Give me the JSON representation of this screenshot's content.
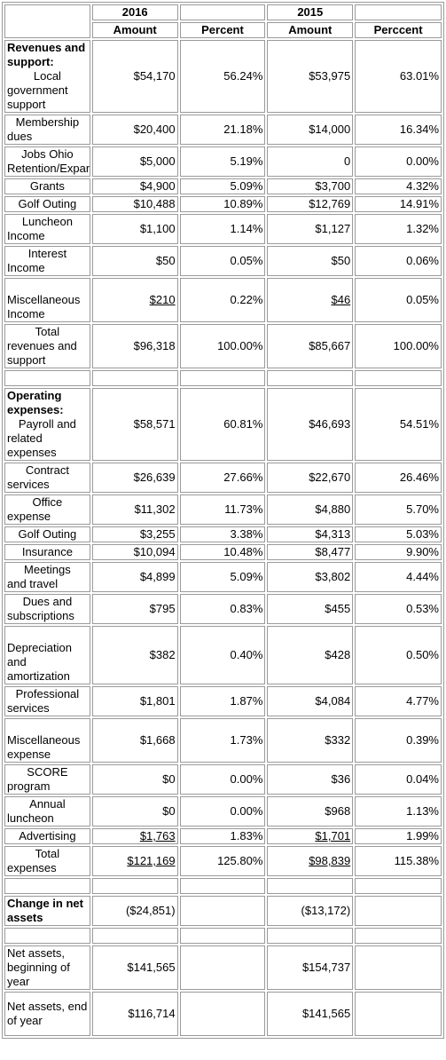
{
  "header": {
    "year_2016": "2016",
    "year_2015": "2015",
    "amount_2016": "Amount",
    "percent_2016": "Percent",
    "amount_2015": "Amount",
    "percent_2015": "Perccent"
  },
  "sections": [
    {
      "title": "Revenues and support:",
      "rows": [
        {
          "first": "Local",
          "rest": "government support",
          "a16": "$54,170",
          "p16": "56.24%",
          "a15": "$53,975",
          "p15": "63.01%"
        },
        {
          "first": "Membership",
          "rest": "dues",
          "a16": "$20,400",
          "p16": "21.18%",
          "a15": "$14,000",
          "p15": "16.34%"
        },
        {
          "first": "Jobs Ohio",
          "rest": "Retention/Expansion",
          "a16": "$5,000",
          "p16": "5.19%",
          "a15": "0",
          "p15": "0.00%"
        },
        {
          "first": "Grants",
          "rest": "",
          "a16": "$4,900",
          "p16": "5.09%",
          "a15": "$3,700",
          "p15": "4.32%"
        },
        {
          "first": "Golf Outing",
          "rest": "",
          "a16": "$10,488",
          "p16": "10.89%",
          "a15": "$12,769",
          "p15": "14.91%"
        },
        {
          "first": "Luncheon",
          "rest": "Income",
          "a16": "$1,100",
          "p16": "1.14%",
          "a15": "$1,127",
          "p15": "1.32%"
        },
        {
          "first": "Interest",
          "rest": "Income",
          "a16": "$50",
          "p16": "0.05%",
          "a15": "$50",
          "p15": "0.06%"
        },
        {
          "first": "",
          "rest": "Miscellaneous Income",
          "a16": "$210",
          "p16": "0.22%",
          "a15": "$46",
          "p15": "0.05%",
          "u": true,
          "blank_top": true
        },
        {
          "first": "Total",
          "rest": "revenues and support",
          "a16": "$96,318",
          "p16": "100.00%",
          "a15": "$85,667",
          "p15": "100.00%"
        }
      ]
    },
    {
      "title": "Operating expenses:",
      "rows": [
        {
          "first": "Payroll and",
          "rest": "related expenses",
          "a16": "$58,571",
          "p16": "60.81%",
          "a15": "$46,693",
          "p15": "54.51%"
        },
        {
          "first": "Contract",
          "rest": "services",
          "a16": "$26,639",
          "p16": "27.66%",
          "a15": "$22,670",
          "p15": "26.46%"
        },
        {
          "first": "Office",
          "rest": "expense",
          "a16": "$11,302",
          "p16": "11.73%",
          "a15": "$4,880",
          "p15": "5.70%"
        },
        {
          "first": "Golf Outing",
          "rest": "",
          "a16": "$3,255",
          "p16": "3.38%",
          "a15": "$4,313",
          "p15": "5.03%"
        },
        {
          "first": "Insurance",
          "rest": "",
          "a16": "$10,094",
          "p16": "10.48%",
          "a15": "$8,477",
          "p15": "9.90%"
        },
        {
          "first": "Meetings",
          "rest": "and travel",
          "a16": "$4,899",
          "p16": "5.09%",
          "a15": "$3,802",
          "p15": "4.44%"
        },
        {
          "first": "Dues and",
          "rest": "subscriptions",
          "a16": "$795",
          "p16": "0.83%",
          "a15": "$455",
          "p15": "0.53%"
        },
        {
          "first": "",
          "rest": "Depreciation and amortization",
          "a16": "$382",
          "p16": "0.40%",
          "a15": "$428",
          "p15": "0.50%",
          "blank_top": true
        },
        {
          "first": "Professional",
          "rest": "services",
          "a16": "$1,801",
          "p16": "1.87%",
          "a15": "$4,084",
          "p15": "4.77%"
        },
        {
          "first": "",
          "rest": "Miscellaneous expense",
          "a16": "$1,668",
          "p16": "1.73%",
          "a15": "$332",
          "p15": "0.39%",
          "blank_top": true
        },
        {
          "first": "SCORE",
          "rest": "program",
          "a16": "$0",
          "p16": "0.00%",
          "a15": "$36",
          "p15": "0.04%"
        },
        {
          "first": "Annual",
          "rest": "luncheon",
          "a16": "$0",
          "p16": "0.00%",
          "a15": "$968",
          "p15": "1.13%"
        },
        {
          "first": "Advertising",
          "rest": "",
          "a16": "$1,763",
          "p16": "1.83%",
          "a15": "$1,701",
          "p15": "1.99%",
          "u": true
        },
        {
          "first": "Total",
          "rest": "expenses",
          "a16": "$121,169",
          "p16": "125.80%",
          "a15": "$98,839",
          "p15": "115.38%",
          "u": true
        }
      ]
    }
  ],
  "summary": {
    "change": {
      "label": "Change in net assets",
      "a16": "($24,851)",
      "a15": "($13,172)"
    },
    "beginning": {
      "label": "Net assets, beginning of year",
      "a16": "$141,565",
      "a15": "$154,737"
    },
    "end": {
      "label": "Net assets, end of year",
      "a16": "$116,714",
      "a15": "$141,565"
    }
  }
}
